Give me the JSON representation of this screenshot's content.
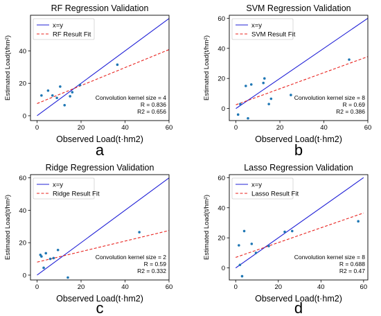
{
  "chart_data": [
    {
      "type": "scatter",
      "panel_letter": "a",
      "title": "RF Regression Validation",
      "xlabel": "Observed Load(t·hm2)",
      "ylabel": "Estimated Load(t/hm²)",
      "xlim": [
        -3,
        60
      ],
      "ylim": [
        -3,
        62
      ],
      "xticks": [
        0,
        20,
        40,
        60
      ],
      "yticks": [
        0,
        20,
        40
      ],
      "legend": {
        "placement": "top-left",
        "entries": [
          "x=y",
          "RF Result Fit"
        ]
      },
      "annotation": [
        "Convolution kernel size = 4",
        "R = 0.836",
        "R2 = 0.656"
      ],
      "grid": false,
      "identity_line": {
        "x": [
          0,
          60
        ],
        "y": [
          0,
          60
        ]
      },
      "fit_line": {
        "x": [
          0,
          60
        ],
        "y": [
          7.5,
          40.8
        ]
      },
      "points": [
        {
          "x": 2.0,
          "y": 12.5
        },
        {
          "x": 5.0,
          "y": 15.5
        },
        {
          "x": 7.0,
          "y": 12.5
        },
        {
          "x": 9.0,
          "y": 11.0
        },
        {
          "x": 10.5,
          "y": 18.0
        },
        {
          "x": 12.5,
          "y": 6.5
        },
        {
          "x": 15.0,
          "y": 12.0
        },
        {
          "x": 16.0,
          "y": 14.5
        },
        {
          "x": 19.5,
          "y": 19.0
        },
        {
          "x": 36.5,
          "y": 31.5
        }
      ]
    },
    {
      "type": "scatter",
      "panel_letter": "b",
      "title": "SVM Regression Validation",
      "xlabel": "Observed Load(t·hm2)",
      "ylabel": "Estimated Load(t/hm²)",
      "xlim": [
        -3,
        60
      ],
      "ylim": [
        -8,
        62
      ],
      "xticks": [
        0,
        20,
        40,
        60
      ],
      "yticks": [
        0,
        20,
        40,
        60
      ],
      "legend": {
        "placement": "top-left",
        "entries": [
          "x=y",
          "SVM Result Fit"
        ]
      },
      "annotation": [
        "Convolution kernel size = 8",
        "R = 0.69",
        "R2 = 0.386"
      ],
      "grid": false,
      "identity_line": {
        "x": [
          0,
          60
        ],
        "y": [
          0,
          60
        ]
      },
      "fit_line": {
        "x": [
          0,
          60
        ],
        "y": [
          2.5,
          34.5
        ]
      },
      "points": [
        {
          "x": 1.0,
          "y": -4.0
        },
        {
          "x": 2.0,
          "y": 3.0
        },
        {
          "x": 4.5,
          "y": 15.0
        },
        {
          "x": 5.5,
          "y": -6.5
        },
        {
          "x": 7.0,
          "y": 16.0
        },
        {
          "x": 12.5,
          "y": 17.0
        },
        {
          "x": 13.0,
          "y": 20.0
        },
        {
          "x": 15.0,
          "y": 3.0
        },
        {
          "x": 16.0,
          "y": 6.5
        },
        {
          "x": 25.0,
          "y": 9.0
        },
        {
          "x": 51.5,
          "y": 32.5
        }
      ]
    },
    {
      "type": "scatter",
      "panel_letter": "c",
      "title": "Ridge Regression Validation",
      "xlabel": "Observed Load(t·hm2)",
      "ylabel": "Estimated Load(t/hm²)",
      "xlim": [
        -3,
        60
      ],
      "ylim": [
        -3,
        62
      ],
      "xticks": [
        0,
        20,
        40,
        60
      ],
      "yticks": [
        0,
        20,
        40,
        60
      ],
      "legend": {
        "placement": "top-left",
        "entries": [
          "x=y",
          "Ridge Result Fit"
        ]
      },
      "annotation": [
        "Convolution kernel size = 2",
        "R = 0.59",
        "R2 = 0.332"
      ],
      "grid": false,
      "identity_line": {
        "x": [
          0,
          60
        ],
        "y": [
          0,
          60
        ]
      },
      "fit_line": {
        "x": [
          0,
          60
        ],
        "y": [
          8.0,
          27.5
        ]
      },
      "points": [
        {
          "x": 1.5,
          "y": 12.5
        },
        {
          "x": 2.0,
          "y": 11.5
        },
        {
          "x": 3.0,
          "y": 4.5
        },
        {
          "x": 4.0,
          "y": 13.5
        },
        {
          "x": 6.0,
          "y": 10.0
        },
        {
          "x": 7.5,
          "y": 10.5
        },
        {
          "x": 9.5,
          "y": 15.5
        },
        {
          "x": 14.0,
          "y": -1.5
        },
        {
          "x": 46.5,
          "y": 26.5
        }
      ]
    },
    {
      "type": "scatter",
      "panel_letter": "d",
      "title": "Lasso Regression Validation",
      "xlabel": "Observed Load(t·hm2)",
      "ylabel": "Estimated Load(t/hm²)",
      "xlim": [
        -3,
        62
      ],
      "ylim": [
        -8,
        62
      ],
      "xticks": [
        0,
        20,
        40,
        60
      ],
      "yticks": [
        0,
        20,
        40,
        60
      ],
      "legend": {
        "placement": "top-left",
        "entries": [
          "x=y",
          "Lasso Result Fit"
        ]
      },
      "annotation": [
        "Convolution kernel size = 8",
        "R = 0.688",
        "R2 = 0.47"
      ],
      "grid": false,
      "identity_line": {
        "x": [
          0,
          60
        ],
        "y": [
          0,
          60
        ]
      },
      "fit_line": {
        "x": [
          0,
          60
        ],
        "y": [
          7.0,
          36.5
        ]
      },
      "points": [
        {
          "x": 1.5,
          "y": 15.0
        },
        {
          "x": 2.0,
          "y": 2.0
        },
        {
          "x": 3.0,
          "y": -5.5
        },
        {
          "x": 4.0,
          "y": 24.5
        },
        {
          "x": 7.5,
          "y": 16.0
        },
        {
          "x": 9.5,
          "y": 10.0
        },
        {
          "x": 15.5,
          "y": 14.5
        },
        {
          "x": 23.0,
          "y": 24.0
        },
        {
          "x": 26.5,
          "y": 24.5
        },
        {
          "x": 57.5,
          "y": 31.0
        }
      ]
    }
  ],
  "colors": {
    "identity_line": "#1f1fd6",
    "fit_line": "#e8221e",
    "points": "#1f77b4",
    "axes": "#000000"
  }
}
